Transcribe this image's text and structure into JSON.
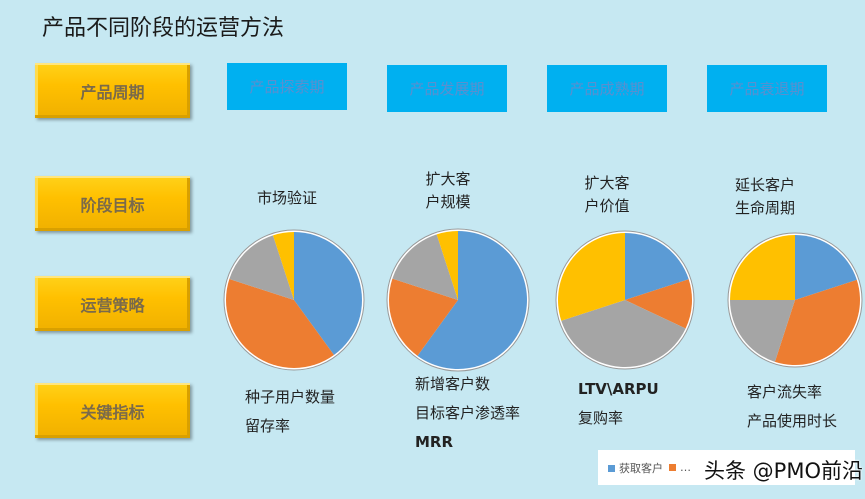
{
  "title": "产品不同阶段的运营方法",
  "rows": [
    "产品周期",
    "阶段目标",
    "运营策略",
    "关键指标"
  ],
  "phases": [
    "产品探索期",
    "产品发展期",
    "产品成熟期",
    "产品衰退期"
  ],
  "goals": [
    [
      "市场验证"
    ],
    [
      "扩大客",
      "户规模"
    ],
    [
      "扩大客",
      "户价值"
    ],
    [
      "延长客户",
      "生命周期"
    ]
  ],
  "metrics": [
    [
      "种子用户数量",
      "留存率"
    ],
    [
      "新增客户数",
      "目标客户渗透率",
      "MRR"
    ],
    [
      "LTV\\ARPU",
      "复购率"
    ],
    [
      "客户流失率",
      "产品使用时长"
    ]
  ],
  "colors": {
    "blue": "#5b9bd5",
    "orange": "#ed7d31",
    "gray": "#a5a5a5",
    "yellow": "#ffc000"
  },
  "chart_data": [
    {
      "type": "pie",
      "phase": "产品探索期",
      "values": [
        0.4,
        0.4,
        0.15,
        0.05
      ]
    },
    {
      "type": "pie",
      "phase": "产品发展期",
      "values": [
        0.6,
        0.2,
        0.15,
        0.05
      ]
    },
    {
      "type": "pie",
      "phase": "产品成熟期",
      "values": [
        0.2,
        0.12,
        0.38,
        0.3
      ]
    },
    {
      "type": "pie",
      "phase": "产品衰退期",
      "values": [
        0.2,
        0.35,
        0.2,
        0.25
      ]
    }
  ],
  "legend": {
    "first": "获取客户",
    "second": "…"
  },
  "watermark": "头条 @PMO前沿"
}
